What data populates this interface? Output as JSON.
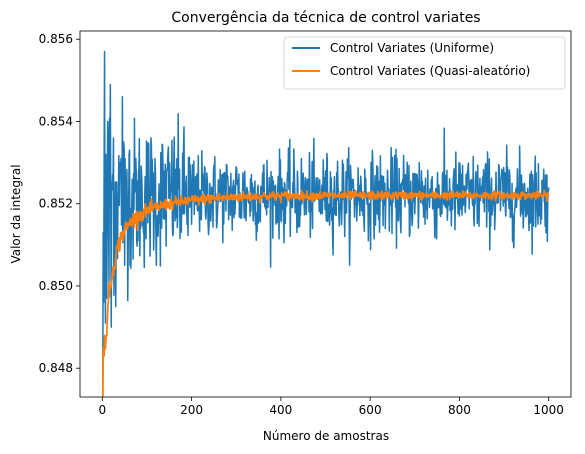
{
  "chart_data": {
    "type": "line",
    "title": "Convergência da técnica de control variates",
    "xlabel": "Número de amostras",
    "ylabel": "Valor da integral",
    "xlim": [
      -50,
      1050
    ],
    "ylim": [
      0.8473,
      0.8562
    ],
    "x_ticks": [
      0,
      200,
      400,
      600,
      800,
      1000
    ],
    "x_tick_labels": [
      "0",
      "200",
      "400",
      "600",
      "800",
      "1000"
    ],
    "y_ticks": [
      0.848,
      0.85,
      0.852,
      0.854,
      0.856
    ],
    "y_tick_labels": [
      "0.848",
      "0.850",
      "0.852",
      "0.854",
      "0.856"
    ],
    "grid": false,
    "legend_position": "top-right",
    "target_value": 0.8522,
    "series": [
      {
        "name": "Control Variates (Uniforme)",
        "color": "#1f77b4",
        "x_range": [
          1,
          1000
        ],
        "sample_points": [
          [
            1,
            0.8476
          ],
          [
            2,
            0.8513
          ],
          [
            3,
            0.8496
          ],
          [
            4,
            0.8528
          ],
          [
            5,
            0.8557
          ],
          [
            6,
            0.8505
          ],
          [
            7,
            0.8491
          ],
          [
            8,
            0.8532
          ],
          [
            9,
            0.8518
          ],
          [
            10,
            0.8497
          ],
          [
            12,
            0.854
          ],
          [
            15,
            0.8501
          ],
          [
            18,
            0.8549
          ],
          [
            20,
            0.849
          ],
          [
            25,
            0.8536
          ],
          [
            30,
            0.8495
          ],
          [
            40,
            0.853
          ],
          [
            45,
            0.8546
          ],
          [
            50,
            0.8505
          ],
          [
            60,
            0.8532
          ],
          [
            80,
            0.8511
          ],
          [
            100,
            0.8534
          ],
          [
            120,
            0.8513
          ],
          [
            150,
            0.853
          ],
          [
            200,
            0.8515
          ],
          [
            300,
            0.8529
          ],
          [
            400,
            0.8516
          ],
          [
            500,
            0.8528
          ],
          [
            600,
            0.8517
          ],
          [
            710,
            0.853
          ],
          [
            800,
            0.8517
          ],
          [
            900,
            0.8527
          ],
          [
            1000,
            0.8524
          ]
        ]
      },
      {
        "name": "Control Variates (Quasi-aleatório)",
        "color": "#ff7f0e",
        "x_range": [
          1,
          1000
        ],
        "sample_points": [
          [
            1,
            0.8487
          ],
          [
            5,
            0.85
          ],
          [
            10,
            0.851
          ],
          [
            20,
            0.8515
          ],
          [
            40,
            0.8519
          ],
          [
            80,
            0.8521
          ],
          [
            150,
            0.8522
          ],
          [
            300,
            0.8522
          ],
          [
            600,
            0.8522
          ],
          [
            1000,
            0.8522
          ]
        ]
      }
    ]
  }
}
